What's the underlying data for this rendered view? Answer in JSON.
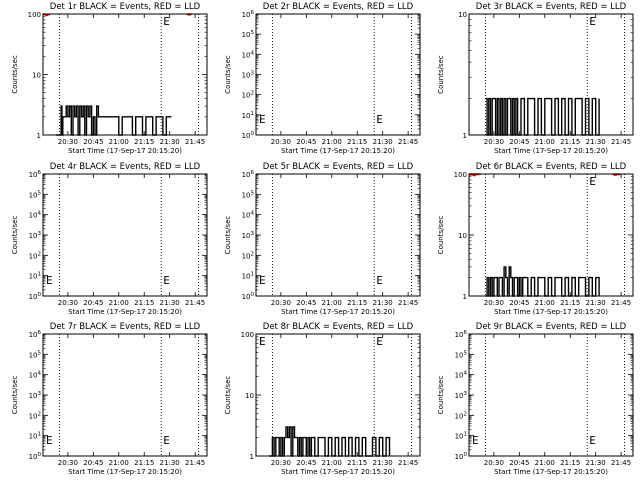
{
  "chart_data": [
    {
      "type": "line",
      "title": "Det 1r BLACK = Events, RED = LLD",
      "xlabel": "Start Time (17-Sep-17 20:15:20)",
      "ylabel": "Counts/sec",
      "x_ticks": [
        "20:30",
        "20:45",
        "21:00",
        "21:15",
        "21:30",
        "21:45"
      ],
      "xlim": [
        "20:15:20",
        "21:52"
      ],
      "yscale": "log",
      "ylim": [
        1,
        100
      ],
      "y_ticks": [
        "1",
        "10",
        "100"
      ],
      "vlines": [
        "20:25",
        "21:25",
        "21:47"
      ],
      "series": [
        {
          "color": "#000000",
          "segments": [
            {
              "x": [
                "20:23",
                "20:25:30",
                "20:26",
                "20:26:30",
                "20:27",
                "20:28",
                "20:29",
                "20:30",
                "20:31",
                "20:32",
                "20:33",
                "20:34",
                "20:35",
                "20:36",
                "20:37",
                "20:38",
                "20:39",
                "20:40",
                "20:41",
                "20:42",
                "20:43",
                "20:44",
                "20:45",
                "20:46",
                "20:47",
                "20:48",
                "20:50",
                "20:53",
                "20:56",
                "20:58",
                "21:00",
                "21:02",
                "21:05",
                "21:08",
                "21:10",
                "21:12",
                "21:14",
                "21:16",
                "21:18",
                "21:20",
                "21:22",
                "21:24",
                "21:26",
                "21:28",
                "21:30",
                "21:31"
              ],
              "y": [
                1,
                1,
                3,
                1,
                2,
                2,
                3,
                2,
                3,
                1,
                3,
                2,
                3,
                1,
                3,
                2,
                3,
                1,
                3,
                2,
                3,
                1,
                2,
                1,
                3,
                2,
                2,
                2,
                2,
                2,
                1,
                2,
                2,
                1,
                2,
                2,
                1,
                2,
                2,
                1,
                2,
                2,
                1,
                2,
                2,
                2
              ]
            }
          ]
        },
        {
          "color": "#ff0000",
          "segments": [
            {
              "x": [
                "20:15:20",
                "20:16",
                "20:17",
                "20:18",
                "20:19"
              ],
              "y": [
                100,
                98,
                95,
                98,
                100
              ]
            },
            {
              "x": [
                "21:40",
                "21:41",
                "21:42",
                "21:43"
              ],
              "y": [
                100,
                97,
                100,
                98
              ]
            }
          ]
        }
      ],
      "annotations": [
        "E"
      ]
    },
    {
      "type": "line",
      "title": "Det 2r BLACK = Events, RED = LLD",
      "xlabel": "Start Time (17-Sep-17 20:15:20)",
      "ylabel": "Counts/sec",
      "x_ticks": [
        "20:30",
        "20:45",
        "21:00",
        "21:15",
        "21:30",
        "21:45"
      ],
      "xlim": [
        "20:15:20",
        "21:52"
      ],
      "yscale": "log",
      "ylim": [
        1,
        1000000
      ],
      "y_ticks": [
        "10^0",
        "10^1",
        "10^2",
        "10^3",
        "10^4",
        "10^5",
        "10^6"
      ],
      "vlines": [
        "20:25",
        "21:25",
        "21:47"
      ],
      "series": [],
      "annotations": [
        "E",
        "E"
      ]
    },
    {
      "type": "line",
      "title": "Det 3r BLACK = Events, RED = LLD",
      "xlabel": "Start Time (17-Sep-17 20:15:20)",
      "ylabel": "Counts/sec",
      "x_ticks": [
        "20:30",
        "20:45",
        "21:00",
        "21:15",
        "21:30",
        "21:45"
      ],
      "xlim": [
        "20:15:20",
        "21:52"
      ],
      "yscale": "log",
      "ylim": [
        1,
        10
      ],
      "y_ticks": [
        "1",
        "10"
      ],
      "vlines": [
        "20:25",
        "21:25",
        "21:47"
      ],
      "series": [
        {
          "color": "#000000",
          "segments": [
            {
              "x": [
                "20:25",
                "20:26",
                "20:27",
                "20:28",
                "20:29",
                "20:30",
                "20:31",
                "20:32",
                "20:33",
                "20:34",
                "20:35",
                "20:36",
                "20:37",
                "20:38",
                "20:39",
                "20:40",
                "20:41",
                "20:42",
                "20:43",
                "20:44",
                "20:46",
                "20:48",
                "20:50",
                "20:52",
                "20:54",
                "20:56",
                "20:58",
                "21:00",
                "21:02",
                "21:04",
                "21:06",
                "21:08",
                "21:10",
                "21:12",
                "21:14",
                "21:16",
                "21:18",
                "21:20",
                "21:22",
                "21:24",
                "21:26",
                "21:28",
                "21:30",
                "21:32"
              ],
              "y": [
                2,
                1,
                2,
                1,
                2,
                2,
                1,
                2,
                1,
                2,
                1,
                2,
                1,
                2,
                2,
                1,
                2,
                1,
                2,
                1,
                2,
                1,
                2,
                2,
                1,
                2,
                1,
                2,
                2,
                1,
                2,
                1,
                2,
                1,
                2,
                1,
                2,
                2,
                1,
                2,
                1,
                2,
                1,
                2
              ]
            }
          ]
        }
      ],
      "annotations": [
        "E"
      ]
    },
    {
      "type": "line",
      "title": "Det 4r BLACK = Events, RED = LLD",
      "xlabel": "Start Time (17-Sep-17 20:15:20)",
      "ylabel": "Counts/sec",
      "x_ticks": [
        "20:30",
        "20:45",
        "21:00",
        "21:15",
        "21:30",
        "21:45"
      ],
      "xlim": [
        "20:15:20",
        "21:52"
      ],
      "yscale": "log",
      "ylim": [
        1,
        1000000
      ],
      "y_ticks": [
        "10^0",
        "10^1",
        "10^2",
        "10^3",
        "10^4",
        "10^5",
        "10^6"
      ],
      "vlines": [
        "20:25",
        "21:25",
        "21:47"
      ],
      "series": [],
      "annotations": [
        "E",
        "E"
      ]
    },
    {
      "type": "line",
      "title": "Det 5r BLACK = Events, RED = LLD",
      "xlabel": "Start Time (17-Sep-17 20:15:20)",
      "ylabel": "Counts/sec",
      "x_ticks": [
        "20:30",
        "20:45",
        "21:00",
        "21:15",
        "21:30",
        "21:45"
      ],
      "xlim": [
        "20:15:20",
        "21:52"
      ],
      "yscale": "log",
      "ylim": [
        1,
        1000000
      ],
      "y_ticks": [
        "10^0",
        "10^1",
        "10^2",
        "10^3",
        "10^4",
        "10^5",
        "10^6"
      ],
      "vlines": [
        "20:25",
        "21:25",
        "21:47"
      ],
      "series": [],
      "annotations": [
        "E",
        "E"
      ]
    },
    {
      "type": "line",
      "title": "Det 6r BLACK = Events, RED = LLD",
      "xlabel": "Start Time (17-Sep-17 20:15:20)",
      "ylabel": "Counts/sec",
      "x_ticks": [
        "20:30",
        "20:45",
        "21:00",
        "21:15",
        "21:30",
        "21:45"
      ],
      "xlim": [
        "20:15:20",
        "21:52"
      ],
      "yscale": "log",
      "ylim": [
        1,
        100
      ],
      "y_ticks": [
        "1",
        "10",
        "100"
      ],
      "vlines": [
        "20:25",
        "21:25",
        "21:47"
      ],
      "series": [
        {
          "color": "#000000",
          "segments": [
            {
              "x": [
                "20:25",
                "20:26",
                "20:27",
                "20:28",
                "20:29",
                "20:30",
                "20:31",
                "20:32",
                "20:33",
                "20:34",
                "20:35",
                "20:36",
                "20:37",
                "20:38",
                "20:39",
                "20:40",
                "20:41",
                "20:42",
                "20:43",
                "20:44",
                "20:45",
                "20:46",
                "20:47",
                "20:48",
                "20:50",
                "20:52",
                "20:54",
                "20:56",
                "20:58",
                "21:00",
                "21:02",
                "21:04",
                "21:06",
                "21:08",
                "21:10",
                "21:12",
                "21:14",
                "21:16",
                "21:18",
                "21:20",
                "21:22",
                "21:24",
                "21:26",
                "21:28",
                "21:30",
                "21:32"
              ],
              "y": [
                1,
                2,
                1,
                2,
                1,
                2,
                2,
                1,
                2,
                2,
                1,
                3,
                2,
                1,
                3,
                2,
                1,
                2,
                2,
                1,
                2,
                1,
                2,
                2,
                1,
                2,
                1,
                2,
                2,
                1,
                2,
                1,
                2,
                2,
                1,
                2,
                1,
                2,
                1,
                2,
                2,
                1,
                2,
                1,
                2,
                1
              ]
            }
          ]
        },
        {
          "color": "#ff0000",
          "segments": [
            {
              "x": [
                "20:15:20",
                "20:16",
                "20:17",
                "20:18",
                "20:19",
                "20:20",
                "20:21",
                "20:22"
              ],
              "y": [
                100,
                97,
                100,
                95,
                100,
                98,
                100,
                97
              ]
            },
            {
              "x": [
                "21:40",
                "21:41",
                "21:42",
                "21:43",
                "21:44"
              ],
              "y": [
                100,
                96,
                100,
                98,
                100
              ]
            }
          ]
        }
      ],
      "annotations": [
        "E"
      ]
    },
    {
      "type": "line",
      "title": "Det 7r BLACK = Events, RED = LLD",
      "xlabel": "Start Time (17-Sep-17 20:15:20)",
      "ylabel": "Counts/sec",
      "x_ticks": [
        "20:30",
        "20:45",
        "21:00",
        "21:15",
        "21:30",
        "21:45"
      ],
      "xlim": [
        "20:15:20",
        "21:52"
      ],
      "yscale": "log",
      "ylim": [
        1,
        1000000
      ],
      "y_ticks": [
        "10^0",
        "10^1",
        "10^2",
        "10^3",
        "10^4",
        "10^5",
        "10^6"
      ],
      "vlines": [
        "20:25",
        "21:25",
        "21:47"
      ],
      "series": [],
      "annotations": [
        "E",
        "E"
      ]
    },
    {
      "type": "line",
      "title": "Det 8r BLACK = Events, RED = LLD",
      "xlabel": "Start Time (17-Sep-17 20:15:20)",
      "ylabel": "Counts/sec",
      "x_ticks": [
        "20:30",
        "20:45",
        "21:00",
        "21:15",
        "21:30",
        "21:45"
      ],
      "xlim": [
        "20:15:20",
        "21:52"
      ],
      "yscale": "log",
      "ylim": [
        1,
        100
      ],
      "y_ticks": [
        "1",
        "10",
        "100"
      ],
      "vlines": [
        "20:25",
        "21:25",
        "21:47"
      ],
      "series": [
        {
          "color": "#000000",
          "segments": [
            {
              "x": [
                "20:23",
                "20:25",
                "20:26",
                "20:27",
                "20:28",
                "20:29",
                "20:30",
                "20:31",
                "20:32",
                "20:33",
                "20:34",
                "20:35",
                "20:36",
                "20:37",
                "20:38",
                "20:39",
                "20:40",
                "20:41",
                "20:42",
                "20:43",
                "20:44",
                "20:45",
                "20:46",
                "20:47",
                "20:48",
                "20:50",
                "20:52",
                "20:54",
                "20:56",
                "20:58",
                "21:00",
                "21:02",
                "21:04",
                "21:06",
                "21:08",
                "21:10",
                "21:12",
                "21:14",
                "21:16",
                "21:18",
                "21:20",
                "21:22",
                "21:24",
                "21:26",
                "21:28",
                "21:30",
                "21:32",
                "21:34"
              ],
              "y": [
                1,
                2,
                1,
                2,
                2,
                1,
                2,
                1,
                2,
                3,
                2,
                3,
                1,
                3,
                2,
                2,
                1,
                2,
                1,
                2,
                2,
                1,
                2,
                1,
                2,
                1,
                2,
                2,
                1,
                2,
                1,
                2,
                1,
                2,
                1,
                2,
                1,
                2,
                1,
                2,
                1,
                1,
                2,
                1,
                2,
                1,
                2,
                1
              ]
            }
          ]
        }
      ],
      "annotations": [
        "E",
        "E"
      ]
    },
    {
      "type": "line",
      "title": "Det 9r BLACK = Events, RED = LLD",
      "xlabel": "Start Time (17-Sep-17 20:15:20)",
      "ylabel": "Counts/sec",
      "x_ticks": [
        "20:30",
        "20:45",
        "21:00",
        "21:15",
        "21:30",
        "21:45"
      ],
      "xlim": [
        "20:15:20",
        "21:52"
      ],
      "yscale": "log",
      "ylim": [
        1,
        1000000
      ],
      "y_ticks": [
        "10^0",
        "10^1",
        "10^2",
        "10^3",
        "10^4",
        "10^5",
        "10^6"
      ],
      "vlines": [
        "20:25",
        "21:25",
        "21:47"
      ],
      "series": [],
      "annotations": [
        "E",
        "E"
      ]
    }
  ]
}
